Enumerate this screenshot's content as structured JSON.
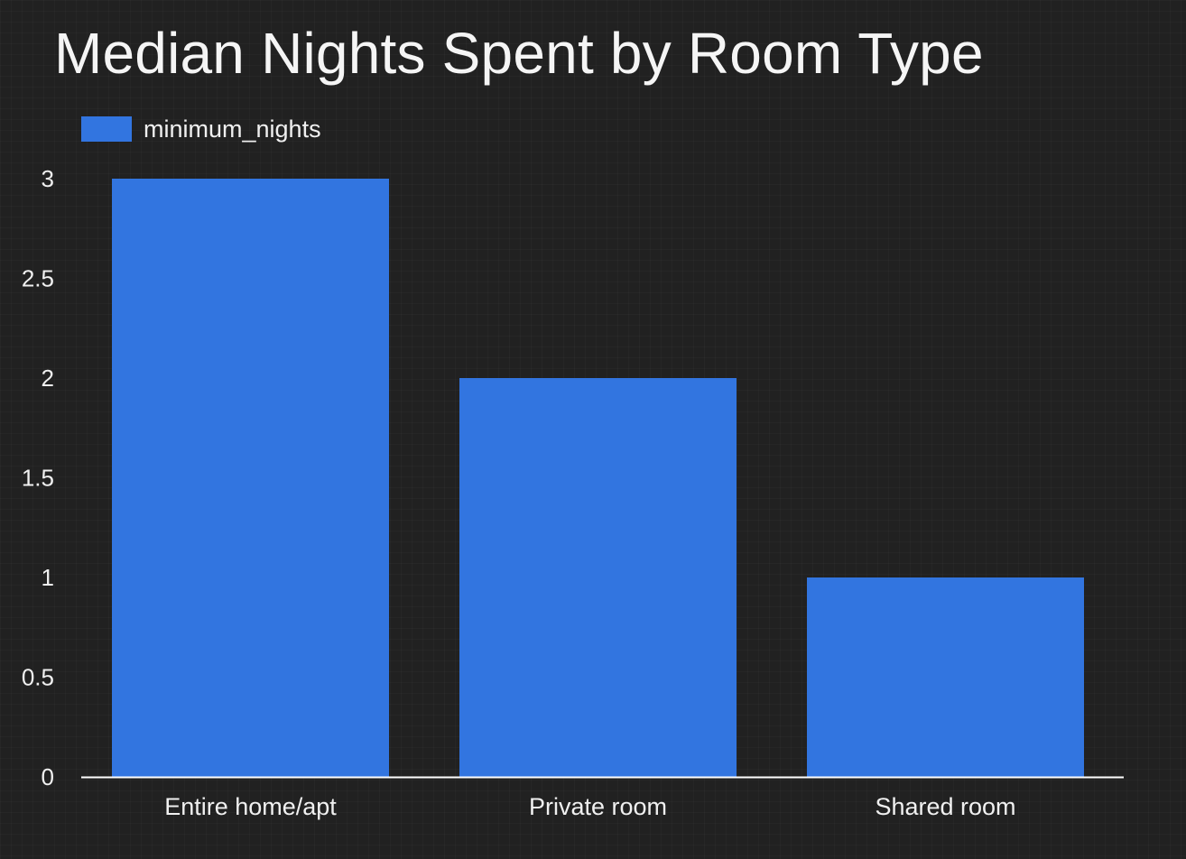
{
  "chart_data": {
    "type": "bar",
    "title": "Median Nights Spent by Room Type",
    "xlabel": "",
    "ylabel": "",
    "categories": [
      "Entire home/apt",
      "Private room",
      "Shared room"
    ],
    "series": [
      {
        "name": "minimum_nights",
        "values": [
          3,
          2,
          1
        ]
      }
    ],
    "ylim": [
      0,
      3
    ],
    "yticks": [
      "0",
      "0.5",
      "1",
      "1.5",
      "2",
      "2.5",
      "3"
    ],
    "grid": false,
    "legend_position": "top-left",
    "colors": {
      "background": "#212121",
      "bar": "#3275e0",
      "axis_line": "#ffffff",
      "text": "#f0f0f0"
    }
  }
}
